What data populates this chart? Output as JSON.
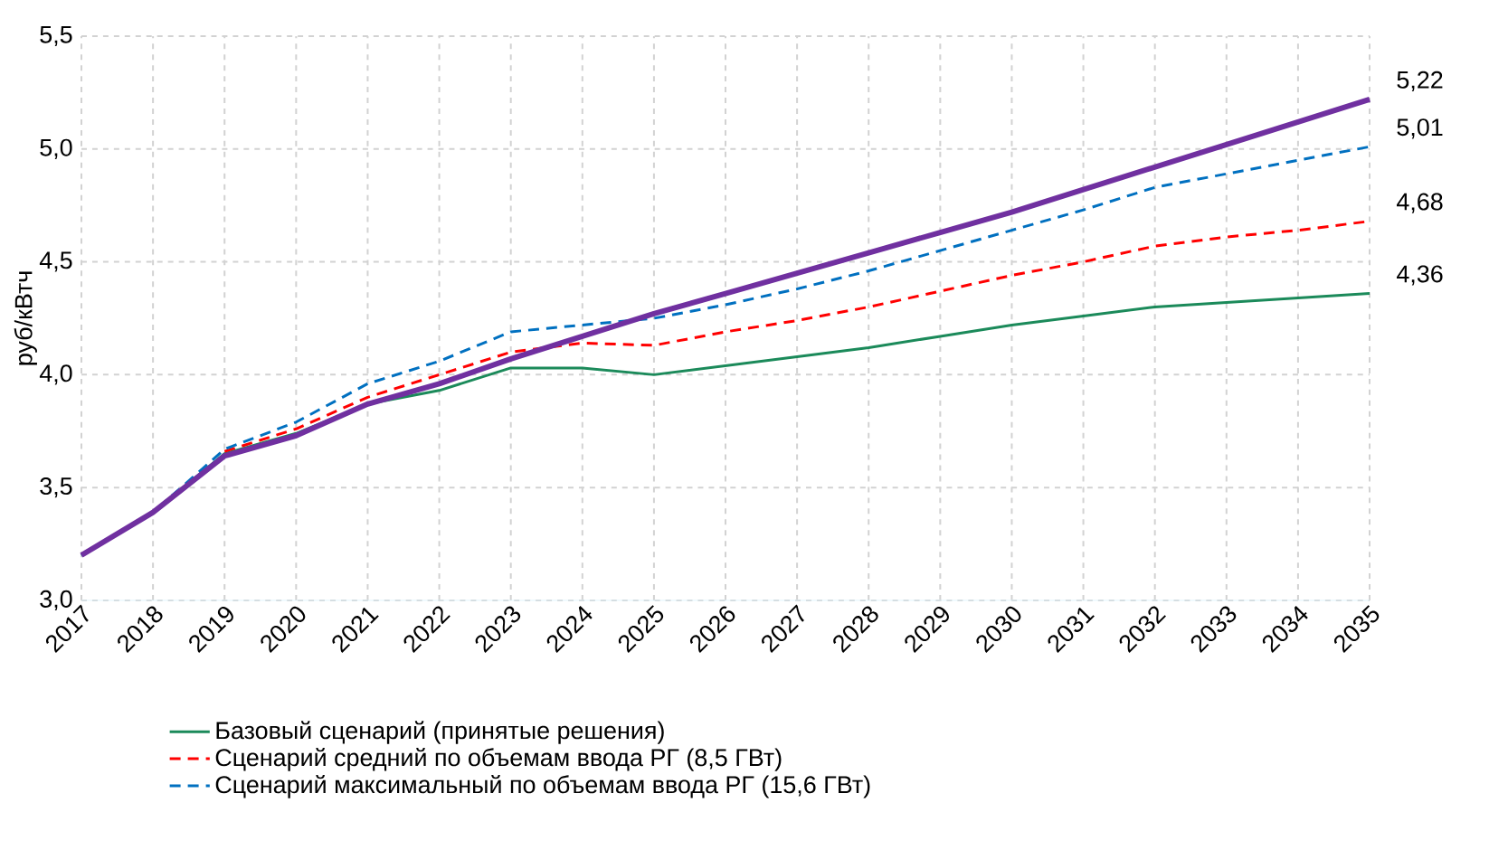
{
  "chart_data": {
    "type": "line",
    "ylabel": "руб/кВтч",
    "categories": [
      "2017",
      "2018",
      "2019",
      "2020",
      "2021",
      "2022",
      "2023",
      "2024",
      "2025",
      "2026",
      "2027",
      "2028",
      "2029",
      "2030",
      "2031",
      "2032",
      "2033",
      "2034",
      "2035"
    ],
    "series": [
      {
        "name": "Базовый сценарий (принятые решения)",
        "color": "#1b8a5a",
        "line_style": "solid",
        "values": [
          3.2,
          3.39,
          3.65,
          3.74,
          3.87,
          3.93,
          4.03,
          4.03,
          4.0,
          4.04,
          4.08,
          4.12,
          4.17,
          4.22,
          4.26,
          4.3,
          4.32,
          4.34,
          4.36
        ]
      },
      {
        "name": "Сценарий средний по объемам ввода РГ (8,5 ГВт)",
        "color": "#ff0000",
        "line_style": "dashed",
        "values": [
          null,
          null,
          3.66,
          3.76,
          3.9,
          4.0,
          4.1,
          4.14,
          4.13,
          4.19,
          4.24,
          4.3,
          4.37,
          4.44,
          4.5,
          4.57,
          4.61,
          4.64,
          4.68
        ]
      },
      {
        "name": "Сценарий максимальный по объемам ввода РГ (15,6 ГВт)",
        "color": "#0070c0",
        "line_style": "dashed",
        "values": [
          3.2,
          3.39,
          3.67,
          3.79,
          3.96,
          4.06,
          4.19,
          4.22,
          4.25,
          4.31,
          4.38,
          4.46,
          4.55,
          4.64,
          4.73,
          4.83,
          4.89,
          4.95,
          5.01
        ]
      },
      {
        "color": "#7030a0",
        "line_style": "solid",
        "values": [
          3.2,
          3.39,
          3.64,
          3.73,
          3.87,
          3.96,
          4.07,
          4.17,
          4.27,
          4.36,
          4.45,
          4.54,
          4.63,
          4.72,
          4.82,
          4.92,
          5.02,
          5.12,
          5.22
        ]
      }
    ],
    "ylim": [
      3.0,
      5.5
    ],
    "yticks": [
      {
        "value": 3.0,
        "label": "3,0"
      },
      {
        "value": 3.5,
        "label": "3,5"
      },
      {
        "value": 4.0,
        "label": "4,0"
      },
      {
        "value": 4.5,
        "label": "4,5"
      },
      {
        "value": 5.0,
        "label": "5,0"
      },
      {
        "value": 5.5,
        "label": "5,5"
      }
    ],
    "annotations": [
      {
        "text": "5,22",
        "x": "2035",
        "y": 5.22
      },
      {
        "text": "5,01",
        "x": "2035",
        "y": 5.01
      },
      {
        "text": "4,68",
        "x": "2035",
        "y": 4.68
      },
      {
        "text": "4,36",
        "x": "2035",
        "y": 4.36
      }
    ],
    "grid": true,
    "legend": "bottom",
    "marker": "none"
  }
}
